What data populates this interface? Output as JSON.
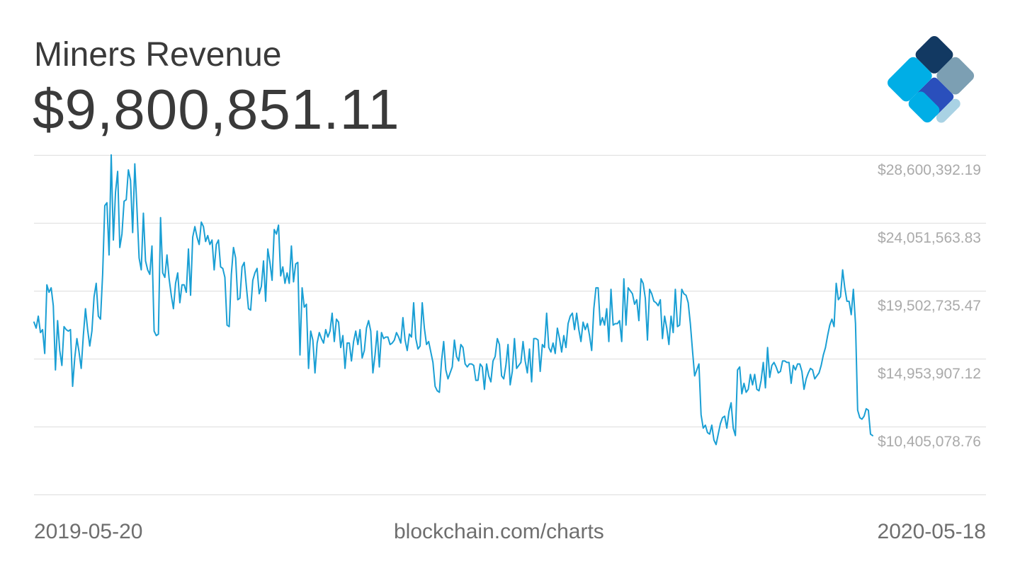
{
  "header": {
    "title": "Miners Revenue",
    "value": "$9,800,851.11"
  },
  "logo": {
    "icon": "blockchain-logo-icon",
    "colors": [
      "#123962",
      "#7c9fb3",
      "#2a4fbc",
      "#00aee6",
      "#a9d2e4"
    ]
  },
  "footer": {
    "start_date": "2019-05-20",
    "source": "blockchain.com/charts",
    "end_date": "2020-05-18"
  },
  "colors": {
    "line": "#1a9fd4",
    "grid": "#dddddd",
    "axis_text": "#aaaaaa",
    "text": "#3a3a3a"
  },
  "chart_data": {
    "type": "line",
    "title": "Miners Revenue",
    "x_start": "2019-05-20",
    "x_end": "2020-05-18",
    "y_ticks": [
      {
        "value": 28600392.19,
        "label": "$28,600,392.19"
      },
      {
        "value": 24051563.83,
        "label": "$24,051,563.83"
      },
      {
        "value": 19502735.47,
        "label": "$19,502,735.47"
      },
      {
        "value": 14953907.12,
        "label": "$14,953,907.12"
      },
      {
        "value": 10405078.76,
        "label": "$10,405,078.76"
      }
    ],
    "ylim": [
      5856250.4,
      28600392.19
    ],
    "grid": true,
    "series": [
      {
        "values": [
          17400000,
          17000000,
          17800000,
          16700000,
          16900000,
          15300000,
          19900000,
          19400000,
          19700000,
          18500000,
          14200000,
          17500000,
          15500000,
          14500000,
          17100000,
          16900000,
          16800000,
          16900000,
          13100000,
          15000000,
          16300000,
          15400000,
          14300000,
          16500000,
          18300000,
          16900000,
          15800000,
          16800000,
          19100000,
          20000000,
          17800000,
          17600000,
          20600000,
          25200000,
          25400000,
          21900000,
          28600000,
          22900000,
          26100000,
          27500000,
          22400000,
          23300000,
          25500000,
          25600000,
          27600000,
          26900000,
          23400000,
          28000000,
          25000000,
          21700000,
          20900000,
          24700000,
          21500000,
          20900000,
          20600000,
          22500000,
          16800000,
          16500000,
          16600000,
          24400000,
          20700000,
          20400000,
          21900000,
          20300000,
          19200000,
          18300000,
          20000000,
          20700000,
          18700000,
          19900000,
          19900000,
          19400000,
          22300000,
          19200000,
          23100000,
          23800000,
          23100000,
          22600000,
          24100000,
          23800000,
          22800000,
          23200000,
          22600000,
          22900000,
          20900000,
          22600000,
          22900000,
          21100000,
          21000000,
          20400000,
          17200000,
          17100000,
          20600000,
          22400000,
          21700000,
          18900000,
          19000000,
          21100000,
          21400000,
          19800000,
          18300000,
          18200000,
          20200000,
          20700000,
          21000000,
          19300000,
          19800000,
          21500000,
          18800000,
          22300000,
          21400000,
          20200000,
          23600000,
          23300000,
          23900000,
          20500000,
          21100000,
          20000000,
          20700000,
          20000000,
          22500000,
          20100000,
          21300000,
          21400000,
          15200000,
          19700000,
          18400000,
          18600000,
          14300000,
          16800000,
          16200000,
          14000000,
          16000000,
          16700000,
          16300000,
          16000000,
          16900000,
          16400000,
          16800000,
          18000000,
          16100000,
          17600000,
          17400000,
          15700000,
          16500000,
          14300000,
          16000000,
          16000000,
          14800000,
          16100000,
          16800000,
          15900000,
          16900000,
          15000000,
          15500000,
          17000000,
          17500000,
          16800000,
          14000000,
          15200000,
          16800000,
          14400000,
          16700000,
          16300000,
          16400000,
          16400000,
          15900000,
          16000000,
          16200000,
          16700000,
          16400000,
          16000000,
          17700000,
          16200000,
          15500000,
          16600000,
          16400000,
          18700000,
          16300000,
          15600000,
          15800000,
          18700000,
          17000000,
          15900000,
          16100000,
          15400000,
          14700000,
          13100000,
          12800000,
          12700000,
          14800000,
          16100000,
          14200000,
          13600000,
          14000000,
          14400000,
          16200000,
          15100000,
          14800000,
          15900000,
          15700000,
          14600000,
          14400000,
          14600000,
          14600000,
          14500000,
          13500000,
          13500000,
          14600000,
          14400000,
          12900000,
          14600000,
          13800000,
          13400000,
          14800000,
          15100000,
          16300000,
          15900000,
          13800000,
          13600000,
          14500000,
          15900000,
          13200000,
          14100000,
          16300000,
          14300000,
          14500000,
          14700000,
          16100000,
          14800000,
          14000000,
          15600000,
          13400000,
          16300000,
          16300000,
          16200000,
          14100000,
          15900000,
          15700000,
          18000000,
          15700000,
          15400000,
          16000000,
          15300000,
          17000000,
          16300000,
          15400000,
          16500000,
          15700000,
          17300000,
          17800000,
          18000000,
          16900000,
          18000000,
          16900000,
          16100000,
          17400000,
          16900000,
          17300000,
          16500000,
          15500000,
          18300000,
          19700000,
          19700000,
          17200000,
          17700000,
          17200000,
          18300000,
          16100000,
          19600000,
          17200000,
          17300000,
          17300000,
          17500000,
          16100000,
          20300000,
          17200000,
          19700000,
          19500000,
          19300000,
          18600000,
          18900000,
          17500000,
          20300000,
          20000000,
          19000000,
          16200000,
          19600000,
          19300000,
          18800000,
          18700000,
          18500000,
          18900000,
          16300000,
          17800000,
          17000000,
          15900000,
          17800000,
          16700000,
          19600000,
          17100000,
          17200000,
          19600000,
          19300000,
          19200000,
          18700000,
          17300000,
          15500000,
          13800000,
          14200000,
          14600000,
          11200000,
          10300000,
          10500000,
          10000000,
          9900000,
          10500000,
          9500000,
          9200000,
          9900000,
          10600000,
          11000000,
          11100000,
          10300000,
          11400000,
          12000000,
          10300000,
          9800000,
          14200000,
          14400000,
          12600000,
          13300000,
          12700000,
          12900000,
          13900000,
          13200000,
          13900000,
          12900000,
          12800000,
          13500000,
          14700000,
          13000000,
          15700000,
          13700000,
          14500000,
          14700000,
          14400000,
          14000000,
          14100000,
          14800000,
          14800000,
          14700000,
          14700000,
          13300000,
          14500000,
          14200000,
          14600000,
          14600000,
          14100000,
          12900000,
          13600000,
          14000000,
          14300000,
          14200000,
          13600000,
          13800000,
          14000000,
          14500000,
          15200000,
          15700000,
          16500000,
          17200000,
          17600000,
          17100000,
          20000000,
          18900000,
          19100000,
          20900000,
          19700000,
          18800000,
          18800000,
          17900000,
          19600000,
          17300000,
          11500000,
          11000000,
          10900000,
          11100000,
          11600000,
          11500000,
          9900000,
          9800000
        ]
      }
    ]
  }
}
